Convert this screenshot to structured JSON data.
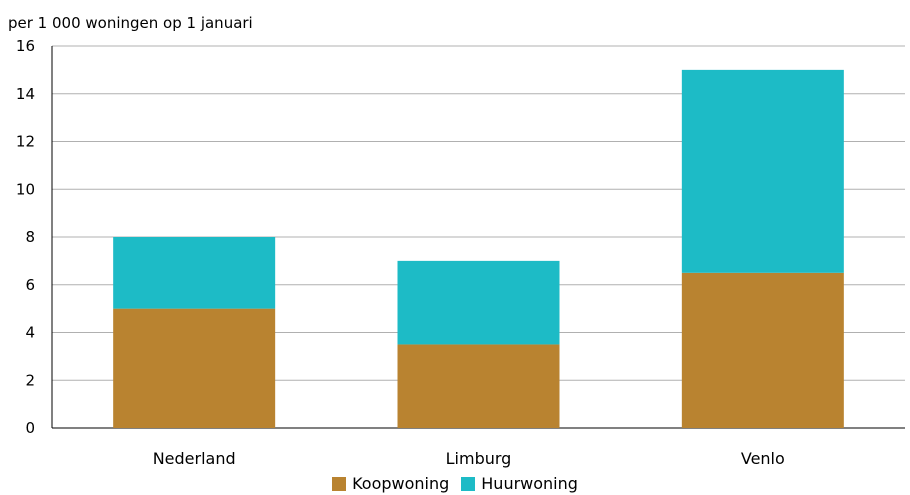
{
  "chart_data": {
    "type": "bar",
    "stacked": true,
    "unit_label": "per 1 000 woningen op 1 januari",
    "categories": [
      "Nederland",
      "Limburg",
      "Venlo"
    ],
    "series": [
      {
        "name": "Koopwoning",
        "color": "#b98330",
        "values": [
          5,
          3.5,
          6.5
        ]
      },
      {
        "name": "Huurwoning",
        "color": "#1dbbc6",
        "values": [
          3,
          3.5,
          8.5
        ]
      }
    ],
    "ylim": [
      0,
      16
    ],
    "yticks": [
      0,
      2,
      4,
      6,
      8,
      10,
      12,
      14,
      16
    ],
    "grid": true,
    "legend_position": "bottom"
  }
}
